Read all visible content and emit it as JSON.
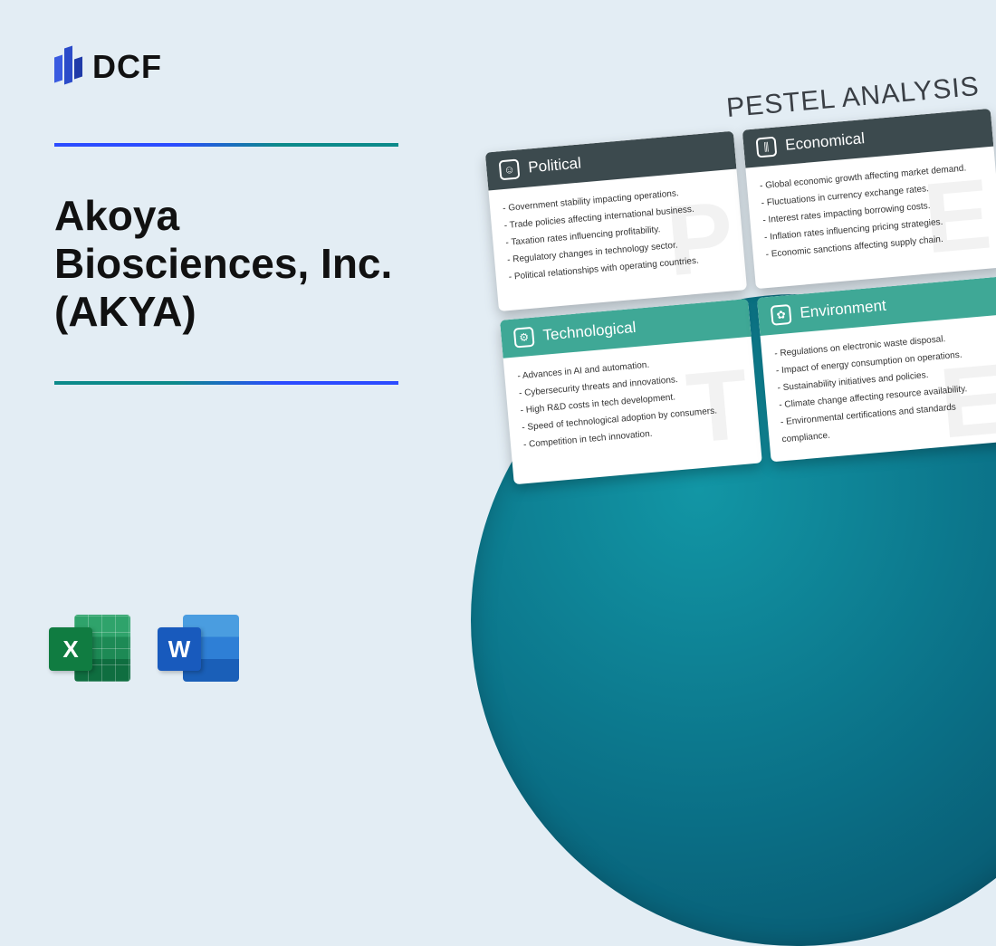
{
  "brand": {
    "name": "DCF"
  },
  "title": "Akoya Biosciences, Inc. (AKYA)",
  "appIcons": {
    "excel": {
      "letter": "X",
      "label": "Excel"
    },
    "word": {
      "letter": "W",
      "label": "Word"
    }
  },
  "pestel": {
    "heading": "PESTEL ANALYSIS",
    "cards": [
      {
        "title": "Political",
        "theme": "dark",
        "watermark": "P",
        "iconGlyph": "☺",
        "items": [
          "- Government stability impacting operations.",
          "- Trade policies affecting international business.",
          "- Taxation rates influencing profitability.",
          "- Regulatory changes in technology sector.",
          "- Political relationships with operating countries."
        ]
      },
      {
        "title": "Economical",
        "theme": "dark",
        "watermark": "E",
        "iconGlyph": "⫼",
        "items": [
          "- Global economic growth affecting market demand.",
          "- Fluctuations in currency exchange rates.",
          "- Interest rates impacting borrowing costs.",
          "- Inflation rates influencing pricing strategies.",
          "- Economic sanctions affecting supply chain."
        ]
      },
      {
        "title": "Technological",
        "theme": "teal",
        "watermark": "T",
        "iconGlyph": "⚙",
        "items": [
          "- Advances in AI and automation.",
          "- Cybersecurity threats and innovations.",
          "- High R&D costs in tech development.",
          "- Speed of technological adoption by consumers.",
          "- Competition in tech innovation."
        ]
      },
      {
        "title": "Environment",
        "theme": "teal",
        "watermark": "E",
        "iconGlyph": "✿",
        "items": [
          "- Regulations on electronic waste disposal.",
          "- Impact of energy consumption on operations.",
          "- Sustainability initiatives and policies.",
          "- Climate change affecting resource availability.",
          "- Environmental certifications and standards compliance."
        ]
      }
    ]
  },
  "colors": {
    "background": "#e3edf4",
    "darkHeader": "#3c4a4e",
    "tealHeader": "#3fa896",
    "circleGradientInner": "#1296a5",
    "circleGradientOuter": "#074e66"
  }
}
